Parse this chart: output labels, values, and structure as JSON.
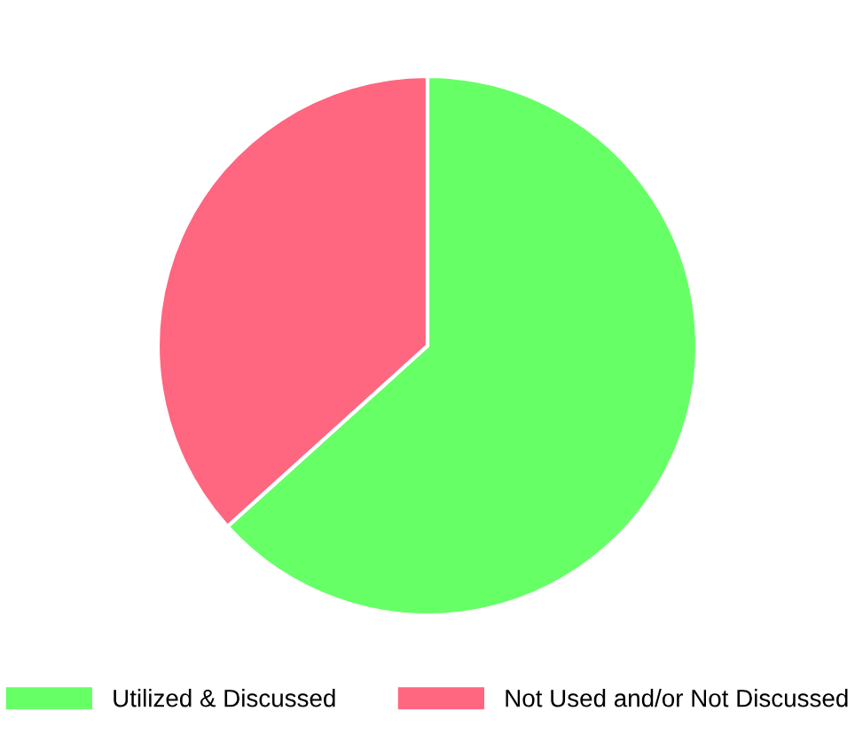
{
  "chart_data": {
    "type": "pie",
    "categories": [
      "Utilized & Discussed",
      "Not Used and/or Not Discussed"
    ],
    "values": [
      63.3,
      36.7
    ],
    "colors": [
      "#66ff66",
      "#ff6680"
    ],
    "legend": "bottom"
  }
}
